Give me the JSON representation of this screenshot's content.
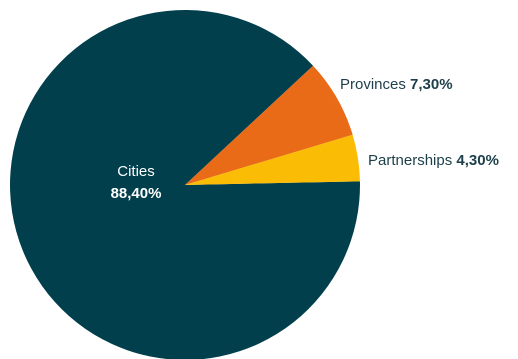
{
  "chart_data": {
    "type": "pie",
    "title": "",
    "decimal_separator": ",",
    "slices": [
      {
        "name": "Cities",
        "value": 88.4,
        "label": "88,40%",
        "color": "#023f4d"
      },
      {
        "name": "Provinces",
        "value": 7.3,
        "label": "7,30%",
        "color": "#e96a17"
      },
      {
        "name": "Partnerships",
        "value": 4.3,
        "label": "4,30%",
        "color": "#fbbc05"
      }
    ],
    "label_color_inside": "#ffffff",
    "label_color_outside": "#1c3f4a",
    "legend": "none"
  }
}
